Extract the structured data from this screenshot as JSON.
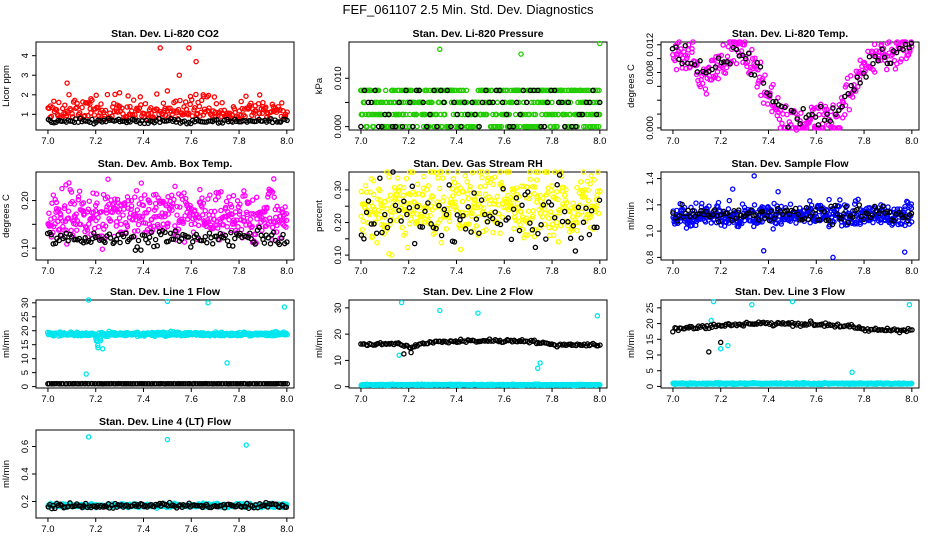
{
  "page": {
    "title": "FEF_061107  2.5 Min. Std. Dev. Diagnostics"
  },
  "colors": {
    "red": "#ff0000",
    "green": "#22cc00",
    "magenta": "#ff00ff",
    "yellow": "#ffff00",
    "blue": "#0000ff",
    "cyan": "#00e5ee",
    "black": "#000000"
  },
  "chart_data": [
    {
      "id": "co2",
      "type": "scatter",
      "title": "Stan. Dev. Li-820 CO2",
      "ylabel": "Licor ppm",
      "xlim": [
        6.95,
        8.03
      ],
      "ylim": [
        0.2,
        4.7
      ],
      "xticks": [
        7.0,
        7.2,
        7.4,
        7.6,
        7.8,
        8.0
      ],
      "xtick_labels": [
        "7.0",
        "7.2",
        "7.4",
        "7.6",
        "7.8",
        "8.0"
      ],
      "yticks": [
        1,
        2,
        3,
        4
      ],
      "ytick_labels": [
        "1",
        "2",
        "3",
        "4"
      ],
      "series": [
        {
          "name": "all",
          "color": "red",
          "n": 260,
          "base": 0.75,
          "spread": 0.55,
          "outliers": [
            [
              7.08,
              2.6
            ],
            [
              7.47,
              4.4
            ],
            [
              7.55,
              3.0
            ],
            [
              7.59,
              4.4
            ],
            [
              7.62,
              3.7
            ],
            [
              7.5,
              2.2
            ],
            [
              7.3,
              2.1
            ],
            [
              7.9,
              1.6
            ],
            [
              7.65,
              2.0
            ],
            [
              7.18,
              1.8
            ]
          ]
        },
        {
          "name": "selected",
          "color": "black",
          "n": 120,
          "base": 0.6,
          "spread": 0.12,
          "outliers": []
        }
      ]
    },
    {
      "id": "pressure",
      "type": "scatter",
      "title": "Stan. Dev. Li-820 Pressure",
      "ylabel": "kPa",
      "xlim": [
        6.95,
        8.03
      ],
      "ylim": [
        -0.0007,
        0.0175
      ],
      "xticks": [
        7.0,
        7.2,
        7.4,
        7.6,
        7.8,
        8.0
      ],
      "xtick_labels": [
        "7.0",
        "7.2",
        "7.4",
        "7.6",
        "7.8",
        "8.0"
      ],
      "yticks": [
        0.0,
        0.005,
        0.01
      ],
      "ytick_labels": [
        "0.000",
        "",
        "0.010"
      ],
      "series": [
        {
          "name": "all",
          "color": "green",
          "n": 500,
          "levels": [
            0.0,
            0.0025,
            0.005,
            0.0075
          ],
          "outliers": [
            [
              7.33,
              0.016
            ],
            [
              7.67,
              0.015
            ],
            [
              8.0,
              0.0172
            ]
          ]
        },
        {
          "name": "selected",
          "color": "black",
          "n": 70,
          "levels": [
            0.0,
            0.0025,
            0.005,
            0.0075
          ],
          "outliers": []
        }
      ]
    },
    {
      "id": "temp820",
      "type": "scatter",
      "title": "Stan. Dev. Li-820 Temp.",
      "ylabel": "degrees C",
      "xlim": [
        6.95,
        8.03
      ],
      "ylim": [
        -0.0003,
        0.0124
      ],
      "xticks": [
        7.0,
        7.2,
        7.4,
        7.6,
        7.8,
        8.0
      ],
      "xtick_labels": [
        "7.0",
        "7.2",
        "7.4",
        "7.6",
        "7.8",
        "8.0"
      ],
      "yticks": [
        0.0,
        0.002,
        0.004,
        0.006,
        0.008,
        0.01,
        0.012
      ],
      "ytick_labels": [
        "0.000",
        "",
        "",
        "",
        "0.008",
        "",
        "0.012"
      ],
      "profile": [
        [
          7.0,
          0.011
        ],
        [
          7.08,
          0.01
        ],
        [
          7.13,
          0.0068
        ],
        [
          7.2,
          0.0095
        ],
        [
          7.26,
          0.0117
        ],
        [
          7.35,
          0.0085
        ],
        [
          7.42,
          0.0035
        ],
        [
          7.5,
          0.0018
        ],
        [
          7.6,
          0.0018
        ],
        [
          7.67,
          0.0018
        ],
        [
          7.72,
          0.004
        ],
        [
          7.78,
          0.0075
        ],
        [
          7.85,
          0.0105
        ],
        [
          8.0,
          0.0115
        ]
      ],
      "series": [
        {
          "name": "all",
          "color": "magenta",
          "n": 320,
          "spread": 0.0012,
          "floor": [
            7.44,
            7.7,
            0.0
          ]
        },
        {
          "name": "selected",
          "color": "black",
          "n": 80,
          "spread": 0.0008
        }
      ]
    },
    {
      "id": "ambbox",
      "type": "scatter",
      "title": "Stan. Dev. Amb. Box Temp.",
      "ylabel": "degrees C",
      "xlim": [
        6.95,
        8.03
      ],
      "ylim": [
        0.075,
        0.26
      ],
      "xticks": [
        7.0,
        7.2,
        7.4,
        7.6,
        7.8,
        8.0
      ],
      "xtick_labels": [
        "7.0",
        "7.2",
        "7.4",
        "7.6",
        "7.8",
        "8.0"
      ],
      "yticks": [
        0.1,
        0.15,
        0.2
      ],
      "ytick_labels": [
        "0.10",
        "",
        "0.20"
      ],
      "series": [
        {
          "name": "all",
          "color": "magenta",
          "n": 460,
          "base": 0.145,
          "spread": 0.05
        },
        {
          "name": "selected",
          "color": "black",
          "n": 130,
          "base": 0.112,
          "spread": 0.018
        }
      ]
    },
    {
      "id": "rh",
      "type": "scatter",
      "title": "Stan. Dev. Gas Stream RH",
      "ylabel": "percent",
      "xlim": [
        6.95,
        8.03
      ],
      "ylim": [
        0.085,
        0.355
      ],
      "xticks": [
        7.0,
        7.2,
        7.4,
        7.6,
        7.8,
        8.0
      ],
      "xtick_labels": [
        "7.0",
        "7.2",
        "7.4",
        "7.6",
        "7.8",
        "8.0"
      ],
      "yticks": [
        0.1,
        0.15,
        0.2,
        0.25,
        0.3
      ],
      "ytick_labels": [
        "0.10",
        "",
        "0.20",
        "",
        "0.30"
      ],
      "series": [
        {
          "name": "all",
          "color": "yellow",
          "n": 460,
          "base": 0.2,
          "spread": 0.11
        },
        {
          "name": "selected",
          "color": "black",
          "n": 90,
          "base": 0.18,
          "spread": 0.09
        }
      ]
    },
    {
      "id": "sampleflow",
      "type": "scatter",
      "title": "Stan. Dev. Sample Flow",
      "ylabel": "ml/min",
      "xlim": [
        6.95,
        8.03
      ],
      "ylim": [
        0.78,
        1.45
      ],
      "xticks": [
        7.0,
        7.2,
        7.4,
        7.6,
        7.8,
        8.0
      ],
      "xtick_labels": [
        "7.0",
        "7.2",
        "7.4",
        "7.6",
        "7.8",
        "8.0"
      ],
      "yticks": [
        0.8,
        1.0,
        1.2,
        1.4
      ],
      "ytick_labels": [
        "0.8",
        "1.0",
        "1.2",
        "1.4"
      ],
      "series": [
        {
          "name": "all",
          "color": "blue",
          "n": 460,
          "base": 1.08,
          "spread": 0.08,
          "outliers": [
            [
              7.34,
              1.42
            ],
            [
              7.38,
              0.85
            ],
            [
              7.67,
              0.8
            ],
            [
              7.97,
              0.84
            ],
            [
              7.44,
              1.3
            ],
            [
              7.25,
              1.32
            ]
          ]
        },
        {
          "name": "selected",
          "color": "black",
          "n": 110,
          "base": 1.1,
          "spread": 0.06,
          "outliers": []
        }
      ]
    },
    {
      "id": "line1",
      "type": "scatter",
      "title": "Stan. Dev. Line 1 Flow",
      "ylabel": "ml/min",
      "xlim": [
        6.95,
        8.03
      ],
      "ylim": [
        -0.5,
        31
      ],
      "xticks": [
        7.0,
        7.2,
        7.4,
        7.6,
        7.8,
        8.0
      ],
      "xtick_labels": [
        "7.0",
        "7.2",
        "7.4",
        "7.6",
        "7.8",
        "8.0"
      ],
      "yticks": [
        0,
        5,
        10,
        15,
        20,
        25,
        30
      ],
      "ytick_labels": [
        "0",
        "5",
        "10",
        "15",
        "20",
        "25",
        "30"
      ],
      "series": [
        {
          "name": "all",
          "color": "cyan",
          "n": 520,
          "base": 18.5,
          "spread": 0.6,
          "dip": [
            7.2,
            7.23,
            13
          ],
          "outliers": [
            [
              7.17,
              31
            ],
            [
              7.5,
              30.5
            ],
            [
              7.67,
              30
            ],
            [
              7.99,
              28.5
            ],
            [
              7.75,
              8.5
            ],
            [
              7.16,
              4.5
            ]
          ]
        },
        {
          "name": "selected",
          "color": "black",
          "n": 140,
          "base": 1.0,
          "spread": 0.05,
          "outliers": []
        }
      ]
    },
    {
      "id": "line2",
      "type": "scatter",
      "title": "Stan. Dev. Line 2 Flow",
      "ylabel": "ml/min",
      "xlim": [
        6.95,
        8.03
      ],
      "ylim": [
        -0.5,
        33
      ],
      "xticks": [
        7.0,
        7.2,
        7.4,
        7.6,
        7.8,
        8.0
      ],
      "xtick_labels": [
        "7.0",
        "7.2",
        "7.4",
        "7.6",
        "7.8",
        "8.0"
      ],
      "yticks": [
        0,
        10,
        20,
        30
      ],
      "ytick_labels": [
        "0",
        "10",
        "20",
        "30"
      ],
      "series": [
        {
          "name": "all",
          "color": "cyan",
          "n": 520,
          "base": 0.6,
          "spread": 0.2,
          "outliers": [
            [
              7.17,
              32
            ],
            [
              7.33,
              29
            ],
            [
              7.49,
              28
            ],
            [
              7.99,
              27
            ],
            [
              7.75,
              9
            ],
            [
              7.74,
              7
            ],
            [
              7.16,
              12
            ]
          ]
        },
        {
          "name": "selected",
          "color": "black",
          "n": 140,
          "curve": [
            [
              7.0,
              16
            ],
            [
              7.15,
              16.5
            ],
            [
              7.2,
              15
            ],
            [
              7.3,
              17
            ],
            [
              7.5,
              17.5
            ],
            [
              7.7,
              17.5
            ],
            [
              7.8,
              16
            ],
            [
              8.0,
              16
            ]
          ],
          "spread": 0.3,
          "outliers": [
            [
              7.18,
              12.5
            ],
            [
              7.21,
              13
            ]
          ]
        }
      ]
    },
    {
      "id": "line3",
      "type": "scatter",
      "title": "Stan. Dev. Line 3 Flow",
      "ylabel": "ml/min",
      "xlim": [
        6.95,
        8.03
      ],
      "ylim": [
        -0.5,
        27.5
      ],
      "xticks": [
        7.0,
        7.2,
        7.4,
        7.6,
        7.8,
        8.0
      ],
      "xtick_labels": [
        "7.0",
        "7.2",
        "7.4",
        "7.6",
        "7.8",
        "8.0"
      ],
      "yticks": [
        0,
        5,
        10,
        15,
        20,
        25
      ],
      "ytick_labels": [
        "0",
        "5",
        "10",
        "15",
        "20",
        "25"
      ],
      "series": [
        {
          "name": "all",
          "color": "cyan",
          "n": 520,
          "base": 0.8,
          "spread": 0.2,
          "outliers": [
            [
              7.17,
              27
            ],
            [
              7.33,
              26
            ],
            [
              7.5,
              27
            ],
            [
              7.99,
              26
            ],
            [
              7.75,
              4.5
            ],
            [
              7.16,
              21
            ],
            [
              7.2,
              12
            ],
            [
              7.23,
              13
            ]
          ]
        },
        {
          "name": "selected",
          "color": "black",
          "n": 140,
          "curve": [
            [
              7.0,
              18.5
            ],
            [
              7.15,
              19
            ],
            [
              7.3,
              20
            ],
            [
              7.5,
              20
            ],
            [
              7.7,
              19.5
            ],
            [
              7.8,
              18
            ],
            [
              8.0,
              18
            ]
          ],
          "spread": 0.35,
          "outliers": [
            [
              7.15,
              11
            ],
            [
              7.2,
              14
            ]
          ]
        }
      ]
    },
    {
      "id": "line4",
      "type": "scatter",
      "title": "Stan. Dev. Line 4 (LT) Flow",
      "ylabel": "ml/min",
      "xlim": [
        6.95,
        8.03
      ],
      "ylim": [
        0.08,
        0.72
      ],
      "xticks": [
        7.0,
        7.2,
        7.4,
        7.6,
        7.8,
        8.0
      ],
      "xtick_labels": [
        "7.0",
        "7.2",
        "7.4",
        "7.6",
        "7.8",
        "8.0"
      ],
      "yticks": [
        0.2,
        0.4,
        0.6
      ],
      "ytick_labels": [
        "0.2",
        "0.4",
        "0.6"
      ],
      "series": [
        {
          "name": "all",
          "color": "cyan",
          "n": 480,
          "base": 0.165,
          "spread": 0.012,
          "outliers": [
            [
              7.17,
              0.67
            ],
            [
              7.5,
              0.65
            ],
            [
              7.83,
              0.61
            ]
          ]
        },
        {
          "name": "selected",
          "color": "black",
          "n": 140,
          "base": 0.16,
          "spread": 0.018,
          "outliers": []
        }
      ]
    }
  ]
}
